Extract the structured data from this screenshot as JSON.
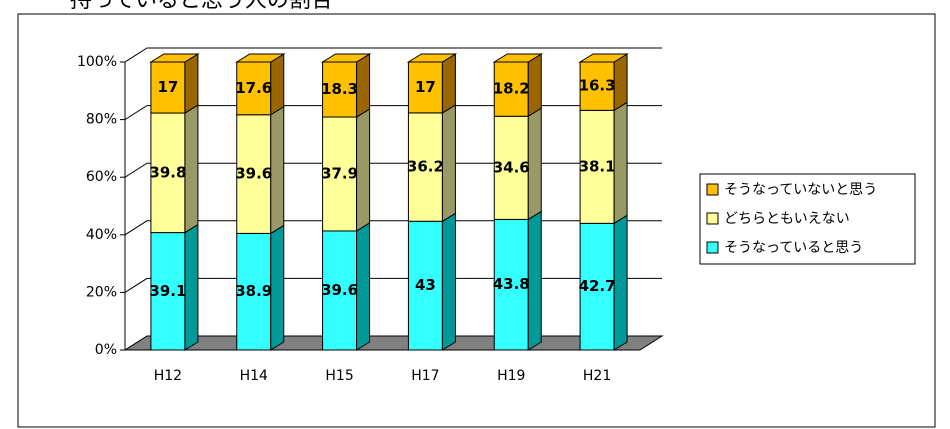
{
  "chart_data": {
    "type": "stacked_percent_bar_3d",
    "title": "持っていると思う人の割合",
    "categories": [
      "H12",
      "H14",
      "H15",
      "H17",
      "H19",
      "H21"
    ],
    "series": [
      {
        "name": "そうなっていると思う",
        "color": "#33ffff",
        "side": "#009999",
        "values": [
          39.1,
          38.9,
          39.6,
          43,
          43.8,
          42.7
        ]
      },
      {
        "name": "どちらともいえない",
        "color": "#ffff99",
        "side": "#999966",
        "values": [
          39.8,
          39.6,
          37.9,
          36.2,
          34.6,
          38.1
        ]
      },
      {
        "name": "そうなっていないと思う",
        "color": "#ffc000",
        "side": "#996600",
        "values": [
          17,
          17.6,
          18.3,
          17,
          18.2,
          16.3
        ]
      }
    ],
    "ylim": [
      0,
      100
    ],
    "yticks": [
      {
        "value": 0,
        "label": "0%"
      },
      {
        "value": 20,
        "label": "20%"
      },
      {
        "value": 40,
        "label": "40%"
      },
      {
        "value": 60,
        "label": "60%"
      },
      {
        "value": 80,
        "label": "80%"
      },
      {
        "value": 100,
        "label": "100%"
      }
    ],
    "grid": true,
    "legend": "right"
  }
}
